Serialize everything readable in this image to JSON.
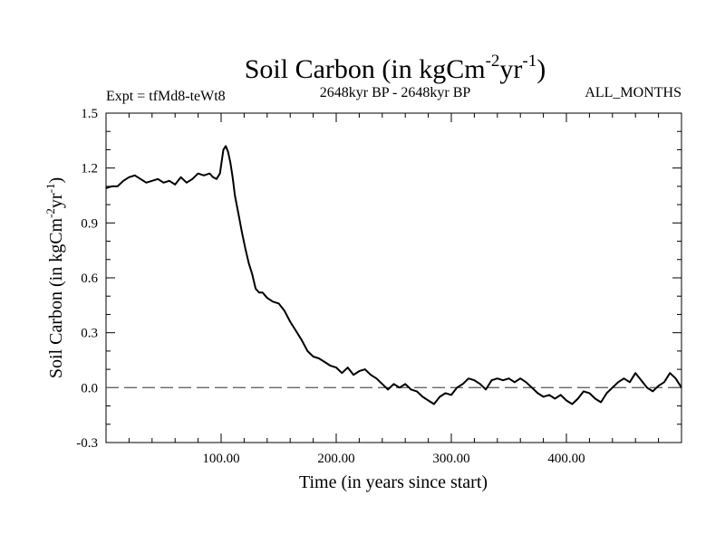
{
  "chart_data": {
    "type": "line",
    "title": {
      "prefix": "Soil Carbon (in kgCm",
      "sup1": "-2",
      "mid": "yr",
      "sup2": "-1",
      "suffix": ")"
    },
    "subtitle_left": "Expt = tfMd8-teWt8",
    "subtitle_center": "2648kyr BP - 2648kyr BP",
    "subtitle_right": "ALL_MONTHS",
    "xlabel": "Time (in years since start)",
    "ylabel": {
      "prefix": "Soil Carbon (in kgCm",
      "sup1": "-2",
      "mid": "yr",
      "sup2": "-1",
      "suffix": ")"
    },
    "xlim": [
      0,
      500
    ],
    "ylim": [
      -0.3,
      1.5
    ],
    "x_ticks": [
      {
        "value": 100,
        "label": "100.00"
      },
      {
        "value": 200,
        "label": "200.00"
      },
      {
        "value": 300,
        "label": "300.00"
      },
      {
        "value": 400,
        "label": "400.00"
      }
    ],
    "y_ticks": [
      {
        "value": -0.3,
        "label": "-0.3"
      },
      {
        "value": 0.0,
        "label": "0.0"
      },
      {
        "value": 0.3,
        "label": "0.3"
      },
      {
        "value": 0.6,
        "label": "0.6"
      },
      {
        "value": 0.9,
        "label": "0.9"
      },
      {
        "value": 1.2,
        "label": "1.2"
      },
      {
        "value": 1.5,
        "label": "1.5"
      }
    ],
    "reference_line": {
      "y": 0.0,
      "style": "dashed"
    },
    "series": [
      {
        "name": "Soil Carbon",
        "x": [
          0,
          5,
          10,
          15,
          20,
          25,
          30,
          35,
          40,
          45,
          50,
          55,
          60,
          65,
          70,
          75,
          80,
          85,
          90,
          93,
          96,
          99,
          102,
          104,
          106,
          108,
          110,
          112,
          115,
          118,
          121,
          124,
          127,
          130,
          133,
          136,
          140,
          145,
          150,
          155,
          160,
          165,
          170,
          175,
          180,
          185,
          190,
          195,
          200,
          205,
          210,
          215,
          220,
          225,
          230,
          235,
          240,
          245,
          250,
          255,
          260,
          265,
          270,
          275,
          280,
          285,
          290,
          295,
          300,
          305,
          310,
          315,
          320,
          325,
          330,
          335,
          340,
          345,
          350,
          355,
          360,
          365,
          370,
          375,
          380,
          385,
          390,
          395,
          400,
          405,
          410,
          415,
          420,
          425,
          430,
          435,
          440,
          445,
          450,
          455,
          460,
          465,
          470,
          475,
          480,
          485,
          490,
          495,
          500
        ],
        "y": [
          1.09,
          1.1,
          1.1,
          1.13,
          1.15,
          1.16,
          1.14,
          1.12,
          1.13,
          1.14,
          1.12,
          1.13,
          1.11,
          1.15,
          1.12,
          1.14,
          1.17,
          1.16,
          1.17,
          1.15,
          1.14,
          1.17,
          1.3,
          1.32,
          1.29,
          1.23,
          1.15,
          1.05,
          0.95,
          0.85,
          0.76,
          0.68,
          0.62,
          0.54,
          0.52,
          0.52,
          0.49,
          0.47,
          0.46,
          0.42,
          0.36,
          0.31,
          0.26,
          0.2,
          0.17,
          0.16,
          0.14,
          0.12,
          0.11,
          0.08,
          0.11,
          0.07,
          0.09,
          0.1,
          0.07,
          0.05,
          0.02,
          -0.01,
          0.02,
          0.0,
          0.02,
          -0.01,
          -0.02,
          -0.05,
          -0.07,
          -0.09,
          -0.05,
          -0.03,
          -0.04,
          0.0,
          0.02,
          0.05,
          0.04,
          0.02,
          -0.01,
          0.04,
          0.05,
          0.04,
          0.05,
          0.03,
          0.05,
          0.03,
          0.0,
          -0.03,
          -0.05,
          -0.04,
          -0.06,
          -0.04,
          -0.07,
          -0.09,
          -0.06,
          -0.02,
          -0.03,
          -0.06,
          -0.08,
          -0.03,
          0.0,
          0.03,
          0.05,
          0.03,
          0.08,
          0.04,
          0.0,
          -0.02,
          0.01,
          0.03,
          0.08,
          0.05,
          0.0
        ]
      }
    ]
  }
}
